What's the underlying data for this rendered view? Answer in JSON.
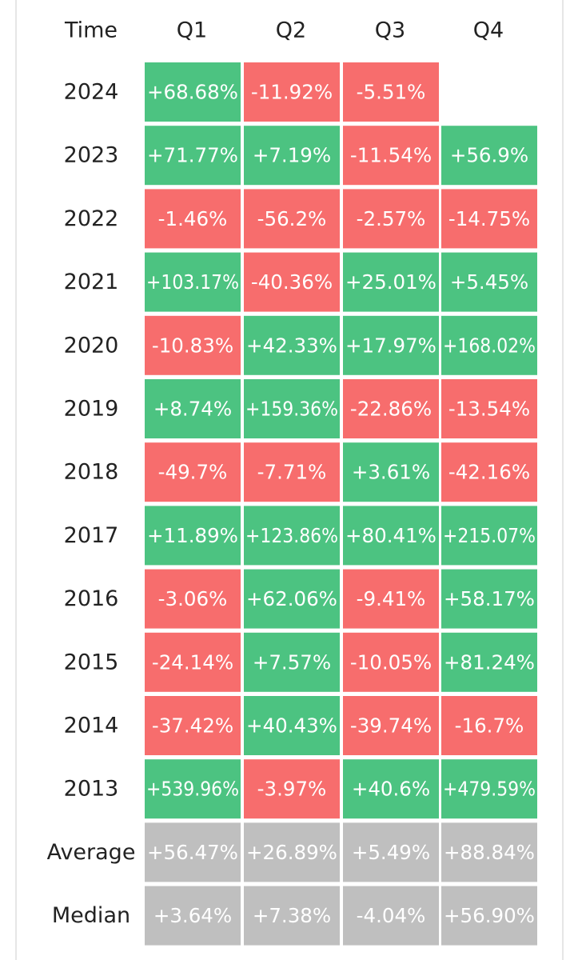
{
  "chart_data": {
    "type": "heatmap",
    "title": "",
    "corner_label": "Time",
    "columns": [
      "Q1",
      "Q2",
      "Q3",
      "Q4"
    ],
    "rows": [
      {
        "label": "2024",
        "values": [
          68.68,
          -11.92,
          -5.51,
          null
        ],
        "display": [
          "+68.68%",
          "-11.92%",
          "-5.51%",
          ""
        ]
      },
      {
        "label": "2023",
        "values": [
          71.77,
          7.19,
          -11.54,
          56.9
        ],
        "display": [
          "+71.77%",
          "+7.19%",
          "-11.54%",
          "+56.9%"
        ]
      },
      {
        "label": "2022",
        "values": [
          -1.46,
          -56.2,
          -2.57,
          -14.75
        ],
        "display": [
          "-1.46%",
          "-56.2%",
          "-2.57%",
          "-14.75%"
        ]
      },
      {
        "label": "2021",
        "values": [
          103.17,
          -40.36,
          25.01,
          5.45
        ],
        "display": [
          "+103.17%",
          "-40.36%",
          "+25.01%",
          "+5.45%"
        ]
      },
      {
        "label": "2020",
        "values": [
          -10.83,
          42.33,
          17.97,
          168.02
        ],
        "display": [
          "-10.83%",
          "+42.33%",
          "+17.97%",
          "+168.02%"
        ]
      },
      {
        "label": "2019",
        "values": [
          8.74,
          159.36,
          -22.86,
          -13.54
        ],
        "display": [
          "+8.74%",
          "+159.36%",
          "-22.86%",
          "-13.54%"
        ]
      },
      {
        "label": "2018",
        "values": [
          -49.7,
          -7.71,
          3.61,
          -42.16
        ],
        "display": [
          "-49.7%",
          "-7.71%",
          "+3.61%",
          "-42.16%"
        ]
      },
      {
        "label": "2017",
        "values": [
          11.89,
          123.86,
          80.41,
          215.07
        ],
        "display": [
          "+11.89%",
          "+123.86%",
          "+80.41%",
          "+215.07%"
        ]
      },
      {
        "label": "2016",
        "values": [
          -3.06,
          62.06,
          -9.41,
          58.17
        ],
        "display": [
          "-3.06%",
          "+62.06%",
          "-9.41%",
          "+58.17%"
        ]
      },
      {
        "label": "2015",
        "values": [
          -24.14,
          7.57,
          -10.05,
          81.24
        ],
        "display": [
          "-24.14%",
          "+7.57%",
          "-10.05%",
          "+81.24%"
        ]
      },
      {
        "label": "2014",
        "values": [
          -37.42,
          40.43,
          -39.74,
          -16.7
        ],
        "display": [
          "-37.42%",
          "+40.43%",
          "-39.74%",
          "-16.7%"
        ]
      },
      {
        "label": "2013",
        "values": [
          539.96,
          -3.97,
          40.6,
          479.59
        ],
        "display": [
          "+539.96%",
          "-3.97%",
          "+40.6%",
          "+479.59%"
        ]
      }
    ],
    "summary_rows": [
      {
        "label": "Average",
        "values": [
          56.47,
          26.89,
          5.49,
          88.84
        ],
        "display": [
          "+56.47%",
          "+26.89%",
          "+5.49%",
          "+88.84%"
        ]
      },
      {
        "label": "Median",
        "values": [
          3.64,
          7.38,
          -4.04,
          56.9
        ],
        "display": [
          "+3.64%",
          "+7.38%",
          "-4.04%",
          "+56.90%"
        ]
      }
    ],
    "colors": {
      "positive": "#4cc381",
      "negative": "#f76d6d",
      "summary": "#bfbfbf",
      "cell_text": "#ffffff",
      "label_text": "#222222",
      "frame": "#e6e6e6"
    }
  }
}
